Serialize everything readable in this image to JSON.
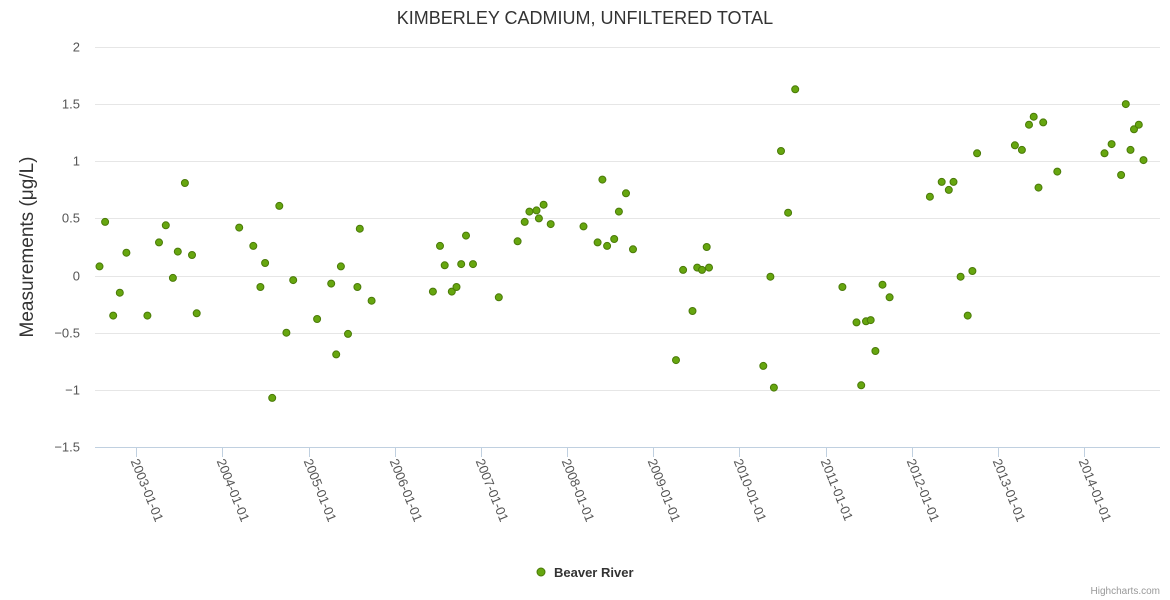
{
  "chart_data": {
    "type": "scatter",
    "title": "KIMBERLEY CADMIUM, UNFILTERED TOTAL",
    "ylabel": "Measurements (μg/L)",
    "xlabel": "",
    "ylim": [
      -1.5,
      2
    ],
    "yticks": [
      {
        "value": 2,
        "label": "2"
      },
      {
        "value": 1.5,
        "label": "1.5"
      },
      {
        "value": 1,
        "label": "1"
      },
      {
        "value": 0.5,
        "label": "0.5"
      },
      {
        "value": 0,
        "label": "0"
      },
      {
        "value": -0.5,
        "label": "−0.5"
      },
      {
        "value": -1,
        "label": "−1"
      },
      {
        "value": -1.5,
        "label": "−1.5"
      }
    ],
    "xlim": [
      "2002-07-11",
      "2014-11-18"
    ],
    "xticks": [
      "2003-01-01",
      "2004-01-01",
      "2005-01-01",
      "2006-01-01",
      "2007-01-01",
      "2008-01-01",
      "2009-01-01",
      "2010-01-01",
      "2011-01-01",
      "2012-01-01",
      "2013-01-01",
      "2014-01-01"
    ],
    "grid": true,
    "legend_position": "bottom-center",
    "series": [
      {
        "name": "Beaver River",
        "color": "#66a60f",
        "outline": "#4a7a08",
        "points": [
          [
            "2002-07-30",
            0.08
          ],
          [
            "2002-08-23",
            0.47
          ],
          [
            "2002-09-26",
            -0.35
          ],
          [
            "2002-10-24",
            -0.15
          ],
          [
            "2002-11-21",
            0.2
          ],
          [
            "2003-02-18",
            -0.35
          ],
          [
            "2003-04-08",
            0.29
          ],
          [
            "2003-05-07",
            0.44
          ],
          [
            "2003-06-06",
            -0.02
          ],
          [
            "2003-06-27",
            0.21
          ],
          [
            "2003-07-27",
            0.81
          ],
          [
            "2003-08-26",
            0.18
          ],
          [
            "2003-09-15",
            -0.33
          ],
          [
            "2004-03-13",
            0.42
          ],
          [
            "2004-05-12",
            0.26
          ],
          [
            "2004-06-11",
            -0.1
          ],
          [
            "2004-07-01",
            0.11
          ],
          [
            "2004-07-31",
            -1.07
          ],
          [
            "2004-08-30",
            0.61
          ],
          [
            "2004-09-29",
            -0.5
          ],
          [
            "2004-10-28",
            -0.04
          ],
          [
            "2005-02-06",
            -0.38
          ],
          [
            "2005-04-07",
            -0.07
          ],
          [
            "2005-04-28",
            -0.69
          ],
          [
            "2005-05-18",
            0.08
          ],
          [
            "2005-06-17",
            -0.51
          ],
          [
            "2005-07-27",
            -0.1
          ],
          [
            "2005-08-06",
            0.41
          ],
          [
            "2005-09-25",
            -0.22
          ],
          [
            "2006-06-12",
            -0.14
          ],
          [
            "2006-07-12",
            0.26
          ],
          [
            "2006-08-01",
            0.09
          ],
          [
            "2006-08-31",
            -0.14
          ],
          [
            "2006-09-20",
            -0.1
          ],
          [
            "2006-10-10",
            0.1
          ],
          [
            "2006-10-30",
            0.35
          ],
          [
            "2006-11-29",
            0.1
          ],
          [
            "2007-03-18",
            -0.19
          ],
          [
            "2007-06-06",
            0.3
          ],
          [
            "2007-07-06",
            0.47
          ],
          [
            "2007-07-26",
            0.56
          ],
          [
            "2007-08-25",
            0.57
          ],
          [
            "2007-09-04",
            0.5
          ],
          [
            "2007-09-24",
            0.62
          ],
          [
            "2007-10-24",
            0.45
          ],
          [
            "2008-03-11",
            0.43
          ],
          [
            "2008-05-10",
            0.29
          ],
          [
            "2008-05-30",
            0.84
          ],
          [
            "2008-06-19",
            0.26
          ],
          [
            "2008-07-19",
            0.32
          ],
          [
            "2008-08-08",
            0.56
          ],
          [
            "2008-09-07",
            0.72
          ],
          [
            "2008-10-07",
            0.23
          ],
          [
            "2009-04-07",
            -0.74
          ],
          [
            "2009-05-07",
            0.05
          ],
          [
            "2009-06-16",
            -0.31
          ],
          [
            "2009-07-06",
            0.07
          ],
          [
            "2009-07-26",
            0.05
          ],
          [
            "2009-08-15",
            0.25
          ],
          [
            "2009-08-25",
            0.07
          ],
          [
            "2010-04-12",
            -0.79
          ],
          [
            "2010-05-12",
            -0.01
          ],
          [
            "2010-05-27",
            -0.98
          ],
          [
            "2010-06-26",
            1.09
          ],
          [
            "2010-07-26",
            0.55
          ],
          [
            "2010-08-25",
            1.63
          ],
          [
            "2011-03-13",
            -0.1
          ],
          [
            "2011-05-12",
            -0.41
          ],
          [
            "2011-06-01",
            -0.96
          ],
          [
            "2011-06-21",
            -0.4
          ],
          [
            "2011-07-11",
            -0.39
          ],
          [
            "2011-07-31",
            -0.66
          ],
          [
            "2011-08-30",
            -0.08
          ],
          [
            "2011-09-29",
            -0.19
          ],
          [
            "2012-03-18",
            0.69
          ],
          [
            "2012-05-07",
            0.82
          ],
          [
            "2012-06-06",
            0.75
          ],
          [
            "2012-06-26",
            0.82
          ],
          [
            "2012-07-26",
            -0.01
          ],
          [
            "2012-08-25",
            -0.35
          ],
          [
            "2012-09-14",
            0.04
          ],
          [
            "2012-10-04",
            1.07
          ],
          [
            "2013-03-13",
            1.14
          ],
          [
            "2013-04-12",
            1.1
          ],
          [
            "2013-05-12",
            1.32
          ],
          [
            "2013-06-01",
            1.39
          ],
          [
            "2013-06-21",
            0.77
          ],
          [
            "2013-07-11",
            1.34
          ],
          [
            "2013-09-09",
            0.91
          ],
          [
            "2014-03-28",
            1.07
          ],
          [
            "2014-04-27",
            1.15
          ],
          [
            "2014-06-06",
            0.88
          ],
          [
            "2014-06-26",
            1.5
          ],
          [
            "2014-07-16",
            1.1
          ],
          [
            "2014-07-31",
            1.28
          ],
          [
            "2014-08-20",
            1.32
          ],
          [
            "2014-09-09",
            1.01
          ]
        ]
      }
    ]
  },
  "credits": "Highcharts.com"
}
